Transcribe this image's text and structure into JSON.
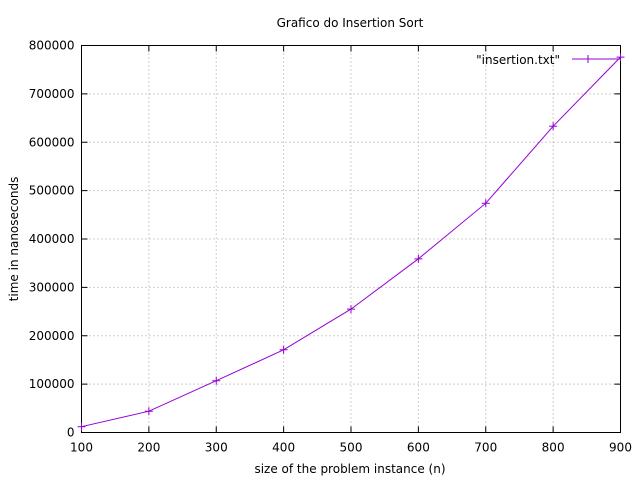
{
  "chart_data": {
    "type": "line",
    "title": "Grafico do Insertion Sort",
    "xlabel": "size of the problem instance (n)",
    "ylabel": "time in nanoseconds",
    "xlim": [
      100,
      900
    ],
    "ylim": [
      0,
      800000
    ],
    "x_ticks": [
      "100",
      "200",
      "300",
      "400",
      "500",
      "600",
      "700",
      "800",
      "900"
    ],
    "y_ticks": [
      "0",
      "100000",
      "200000",
      "300000",
      "400000",
      "500000",
      "600000",
      "700000",
      "800000"
    ],
    "grid": true,
    "legend_position": "top-right",
    "series": [
      {
        "name": "\"insertion.txt\"",
        "color": "#9400d3",
        "marker": "plus",
        "x": [
          100,
          200,
          300,
          400,
          500,
          600,
          700,
          800,
          900
        ],
        "y": [
          12000,
          44000,
          107000,
          171000,
          255000,
          359000,
          474000,
          633000,
          776000
        ]
      }
    ]
  }
}
